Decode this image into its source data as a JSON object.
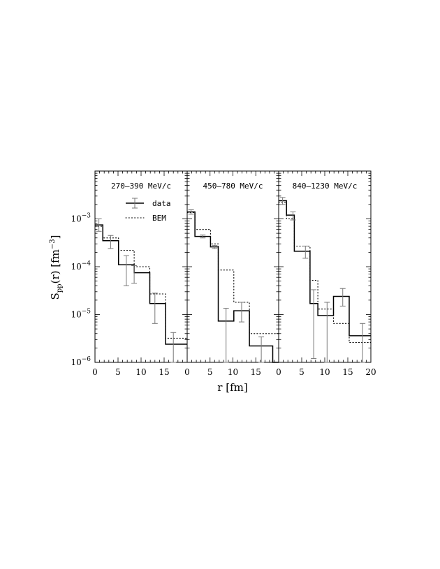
{
  "chart_data": {
    "type": "line",
    "x_axis": {
      "label": "r",
      "unit": "[fm]",
      "range": [
        0,
        20
      ],
      "ticks": [
        0,
        5,
        10,
        15,
        20
      ],
      "shared_panel_ticks": [
        [
          "0",
          "5",
          "10",
          "15",
          ""
        ],
        [
          "0",
          "5",
          "10",
          "15",
          ""
        ],
        [
          "0",
          "5",
          "10",
          "15",
          "20"
        ]
      ]
    },
    "y_axis": {
      "label_main": "S",
      "label_sub": "pp",
      "label_arg": "(r)",
      "unit_pre": "[fm",
      "unit_exp": "−3",
      "unit_post": "]",
      "scale": "log",
      "range": [
        1e-06,
        0.01
      ],
      "tick_base": "10",
      "tick_exponents": [
        "−6",
        "−5",
        "−4",
        "−3"
      ]
    },
    "legend": {
      "placement": "top-right of first panel",
      "entries": [
        {
          "label": "data",
          "style": "solid histogram with error bars"
        },
        {
          "label": "BEM",
          "style": "dotted histogram"
        }
      ]
    },
    "panels": [
      {
        "label": "270–390 MeV/c",
        "bin_edges": [
          0,
          1.7,
          3.4,
          5.1,
          6.8,
          8.5,
          10.2,
          11.9,
          13.6,
          15.3,
          17.0,
          18.7,
          20
        ],
        "data": [
          0.00075,
          0.00035,
          0.00035,
          0.00011,
          0.00011,
          7.5e-05,
          7.5e-05,
          1.7e-05,
          1.7e-05,
          2.4e-06,
          2.4e-06,
          2.4e-06
        ],
        "bem": [
          0.0007,
          0.0004,
          0.0004,
          0.00022,
          0.00022,
          0.0001,
          0.0001,
          2.7e-05,
          2.7e-05,
          3.2e-06,
          3.2e-06,
          3.2e-06
        ],
        "errors": [
          {
            "x": 0.85,
            "low": 0.00055,
            "high": 0.001
          },
          {
            "x": 3.4,
            "low": 0.00024,
            "high": 0.00045
          },
          {
            "x": 6.8,
            "low": 4e-05,
            "high": 0.00017
          },
          {
            "x": 8.5,
            "low": 4.5e-05,
            "high": 0.000105
          },
          {
            "x": 13.0,
            "low": 6.5e-06,
            "high": 2.8e-05
          },
          {
            "x": 17.0,
            "low": 1e-06,
            "high": 4.2e-06
          }
        ]
      },
      {
        "label": "450–780 MeV/c",
        "bin_edges": [
          0,
          1.7,
          3.4,
          5.1,
          6.8,
          8.5,
          10.2,
          11.9,
          13.6,
          15.3,
          17.0,
          18.7,
          20
        ],
        "data": [
          0.0014,
          0.00043,
          0.00043,
          0.00026,
          7.3e-06,
          7.3e-06,
          1.2e-05,
          1.2e-05,
          2.2e-06,
          2.2e-06,
          2.2e-06,
          1e-06
        ],
        "bem": [
          0.00135,
          0.0006,
          0.0006,
          0.0003,
          8.5e-05,
          8.5e-05,
          1.8e-05,
          1.8e-05,
          4e-06,
          4e-06,
          4e-06,
          4e-06
        ],
        "errors": [
          {
            "x": 0.85,
            "low": 0.00125,
            "high": 0.00155
          },
          {
            "x": 3.4,
            "low": 0.0004,
            "high": 0.00046
          },
          {
            "x": 6.0,
            "low": 0.00024,
            "high": 0.00028
          },
          {
            "x": 8.5,
            "low": 1e-06,
            "high": 1.35e-05
          },
          {
            "x": 11.9,
            "low": 7e-06,
            "high": 1.8e-05
          },
          {
            "x": 16.2,
            "low": 1e-06,
            "high": 3.4e-06
          }
        ]
      },
      {
        "label": "840–1230 MeV/c",
        "bin_edges": [
          0,
          1.7,
          3.4,
          5.1,
          6.8,
          8.5,
          10.2,
          11.9,
          13.6,
          15.3,
          17.0,
          18.7,
          20
        ],
        "data": [
          0.0024,
          0.0012,
          0.00021,
          0.00021,
          1.7e-05,
          9.5e-06,
          9.5e-06,
          2.4e-05,
          2.4e-05,
          3.6e-06,
          3.6e-06,
          3.6e-06
        ],
        "bem": [
          0.0022,
          0.001,
          0.00027,
          0.00027,
          5.2e-05,
          1.3e-05,
          1.3e-05,
          6.5e-06,
          6.5e-06,
          2.6e-06,
          2.6e-06,
          2.6e-06
        ],
        "errors": [
          {
            "x": 0.85,
            "low": 0.002,
            "high": 0.0028
          },
          {
            "x": 3.1,
            "low": 0.00095,
            "high": 0.0014
          },
          {
            "x": 5.8,
            "low": 0.00015,
            "high": 0.00027
          },
          {
            "x": 7.6,
            "low": 1.2e-06,
            "high": 3.3e-05
          },
          {
            "x": 10.5,
            "low": 1e-06,
            "high": 1.8e-05
          },
          {
            "x": 13.9,
            "low": 1.5e-05,
            "high": 3.5e-05
          },
          {
            "x": 18.2,
            "low": 1e-06,
            "high": 6.5e-06
          }
        ]
      }
    ]
  }
}
